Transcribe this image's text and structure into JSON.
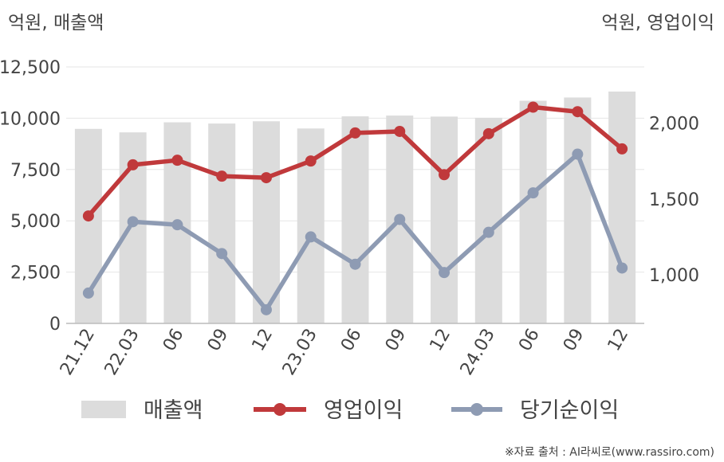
{
  "chart_data": {
    "type": "bar",
    "left_axis_label": "억원, 매출액",
    "right_axis_label": "억원, 영업이익",
    "categories": [
      "21.12",
      "22.03",
      "06",
      "09",
      "12",
      "23.03",
      "06",
      "09",
      "12",
      "24.03",
      "06",
      "09",
      "12"
    ],
    "left_ticks": [
      "0",
      "2,500",
      "5,000",
      "7,500",
      "10,000",
      "12,500"
    ],
    "right_ticks": [
      "1,000",
      "1,500",
      "2,000"
    ],
    "left_ylim": [
      0,
      12500
    ],
    "right_ylim": [
      680,
      2370
    ],
    "grid": true,
    "legend_position": "bottom",
    "series": [
      {
        "name": "매출액",
        "type": "bar",
        "axis": "left",
        "color": "#dcdcdc",
        "values": [
          9480,
          9310,
          9800,
          9740,
          9850,
          9500,
          10090,
          10130,
          10080,
          10020,
          10850,
          11010,
          11300
        ]
      },
      {
        "name": "영업이익",
        "type": "line",
        "axis": "right",
        "color": "#c0393b",
        "values": [
          1388,
          1725,
          1755,
          1650,
          1640,
          1750,
          1935,
          1945,
          1660,
          1930,
          2105,
          2075,
          1830
        ]
      },
      {
        "name": "당기순이익",
        "type": "line",
        "axis": "right",
        "color": "#8e9bb3",
        "values": [
          880,
          1350,
          1330,
          1140,
          770,
          1250,
          1070,
          1365,
          1015,
          1280,
          1540,
          1795,
          1045
        ]
      }
    ]
  },
  "source_note": "※자료 출처 : AI라씨로(www.rassiro.com)"
}
